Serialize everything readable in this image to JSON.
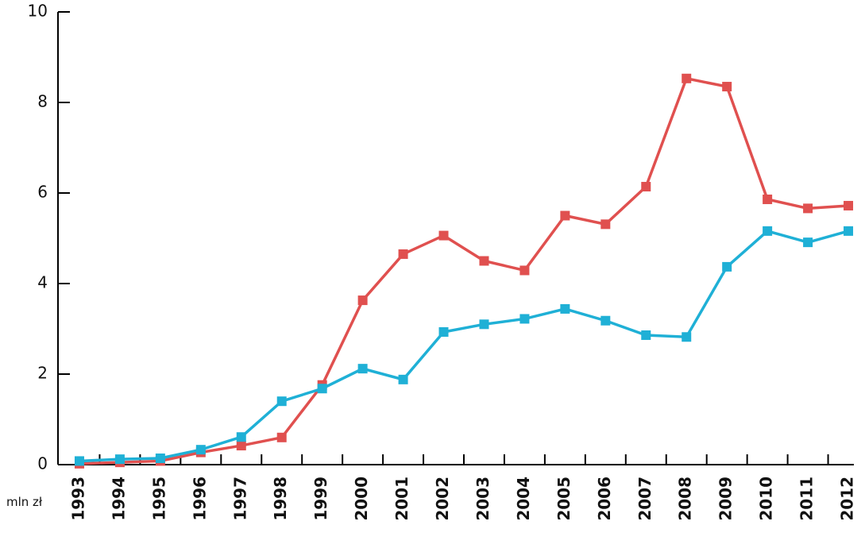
{
  "chart_data": {
    "type": "line",
    "y_label": "mln zł",
    "categories": [
      "1993",
      "1994",
      "1995",
      "1996",
      "1997",
      "1998",
      "1999",
      "2000",
      "2001",
      "2002",
      "2003",
      "2004",
      "2005",
      "2006",
      "2007",
      "2008",
      "2009",
      "2010",
      "2011",
      "2012"
    ],
    "series": [
      {
        "color": "#e0504f",
        "values": [
          0.02,
          0.05,
          0.08,
          0.27,
          0.42,
          0.6,
          1.76,
          3.63,
          4.65,
          5.06,
          4.5,
          4.29,
          5.5,
          5.31,
          6.14,
          8.53,
          8.35,
          5.86,
          5.66,
          5.72
        ]
      },
      {
        "color": "#1fb0d6",
        "values": [
          0.08,
          0.12,
          0.14,
          0.33,
          0.61,
          1.4,
          1.68,
          2.12,
          1.88,
          2.93,
          3.1,
          3.22,
          3.44,
          3.18,
          2.86,
          2.82,
          4.37,
          5.16,
          4.91,
          5.16
        ]
      }
    ],
    "ylim": [
      0,
      10
    ],
    "yticks": [
      0,
      2,
      4,
      6,
      8,
      10
    ]
  }
}
